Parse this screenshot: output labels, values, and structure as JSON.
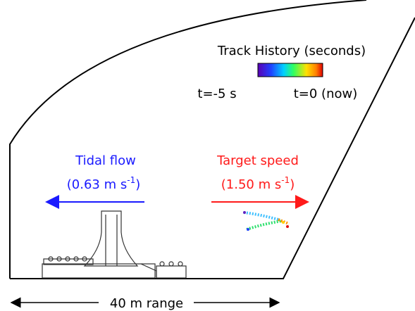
{
  "legend": {
    "title": "Track History (seconds)",
    "start_label": "t=-5 s",
    "end_label": "t=0 (now)"
  },
  "tidal_flow": {
    "label": "Tidal flow",
    "speed_open": "(0.63 m s",
    "exponent": "-1",
    "close": ")"
  },
  "target_speed": {
    "label": "Target speed",
    "speed_open": "(1.50 m s",
    "exponent": "-1",
    "close": ")"
  },
  "range_label": "40 m range"
}
